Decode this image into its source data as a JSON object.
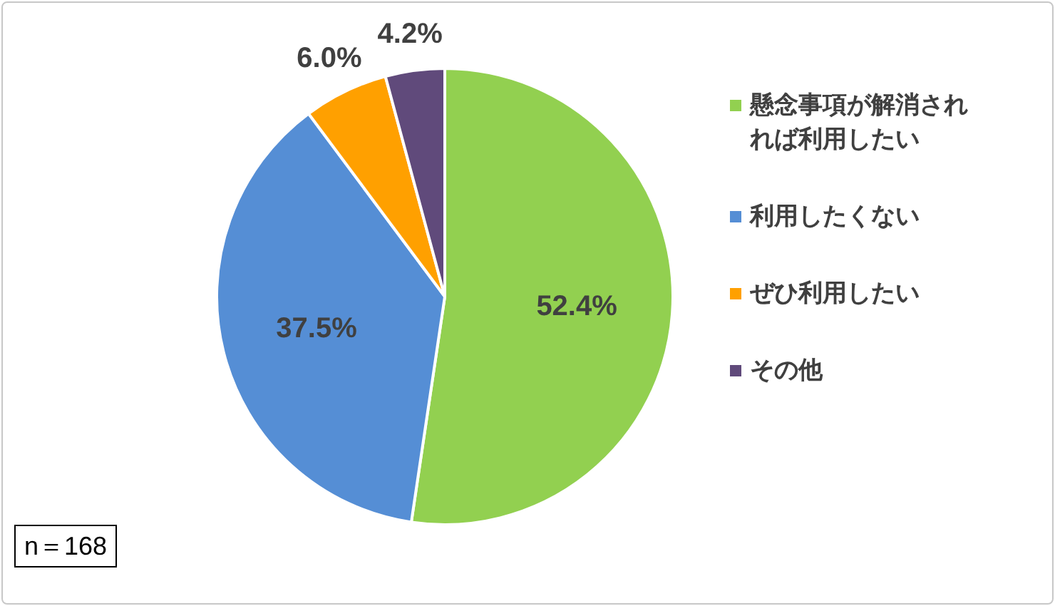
{
  "chart_data": {
    "type": "pie",
    "categories": [
      "懸念事項が解消されれば利用したい",
      "利用したくない",
      "ぜひ利用したい",
      "その他"
    ],
    "values": [
      52.4,
      37.5,
      6.0,
      4.2
    ],
    "colors": [
      "#92d050",
      "#558ed5",
      "#ffa000",
      "#604a7b"
    ],
    "value_labels": [
      "52.4%",
      "37.5%",
      "6.0%",
      "4.2%"
    ],
    "legend": "right",
    "annotations": [
      "n＝168"
    ]
  }
}
